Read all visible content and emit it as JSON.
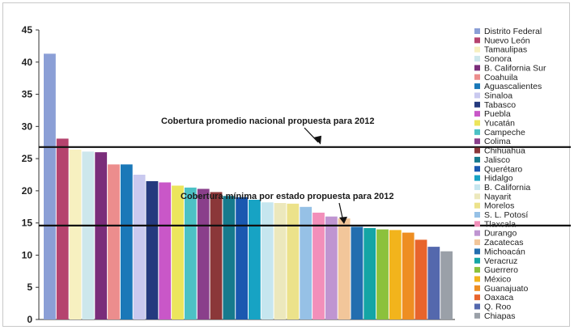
{
  "chart_data": {
    "type": "bar",
    "title": "",
    "xlabel": "",
    "ylabel": "",
    "ylim": [
      0,
      45
    ],
    "yticks": [
      0,
      5,
      10,
      15,
      20,
      25,
      30,
      35,
      40,
      45
    ],
    "grid": false,
    "legend_position": "right",
    "categories": [
      "Distrito Federal",
      "Nuevo León",
      "Tamaulipas",
      "Sonora",
      "B. California Sur",
      "Coahuila",
      "Aguascalientes",
      "Sinaloa",
      "Tabasco",
      "Puebla",
      "Yucatán",
      "Campeche",
      "Colima",
      "Chihuahua",
      "Jalisco",
      "Querétaro",
      "Hidalgo",
      "B. California",
      "Nayarit",
      "Morelos",
      "S. L. Potosí",
      "Tlaxcala",
      "Durango",
      "Zacatecas",
      "Michoacán",
      "Veracruz",
      "Guerrero",
      "México",
      "Guanajuato",
      "Oaxaca",
      "Q. Roo",
      "Chiapas"
    ],
    "values": [
      41.3,
      28.1,
      26.4,
      26.1,
      26.0,
      24.1,
      24.1,
      22.5,
      21.5,
      21.3,
      20.8,
      20.5,
      20.3,
      19.8,
      19.2,
      19.0,
      18.6,
      18.2,
      18.1,
      18.0,
      17.5,
      16.6,
      16.0,
      15.7,
      14.4,
      14.2,
      14.0,
      13.9,
      13.5,
      12.4,
      11.3,
      10.6
    ],
    "colors": [
      "#8b9fd6",
      "#b5436e",
      "#f7f0c0",
      "#cde7ec",
      "#7a2d7a",
      "#ec8d8d",
      "#1a78b8",
      "#c9c9ef",
      "#253a7e",
      "#c957c8",
      "#ece55c",
      "#4cc1c5",
      "#8a3f8b",
      "#8b3739",
      "#167a8d",
      "#1a58b0",
      "#17a3c4",
      "#c6e6ef",
      "#ece8bc",
      "#ece28a",
      "#96c1e6",
      "#f28fba",
      "#bf95d1",
      "#f2c69a",
      "#236eaf",
      "#14a5a5",
      "#8cc13c",
      "#f2b41c",
      "#ee8e22",
      "#e8642c",
      "#5468ad",
      "#9aa0a8"
    ],
    "reference_lines": [
      {
        "value": 26.8,
        "label": "Cobertura promedio nacional propuesta para 2012"
      },
      {
        "value": 14.6,
        "label": "Cobertura mínima por estado propuesta para 2012"
      }
    ]
  }
}
